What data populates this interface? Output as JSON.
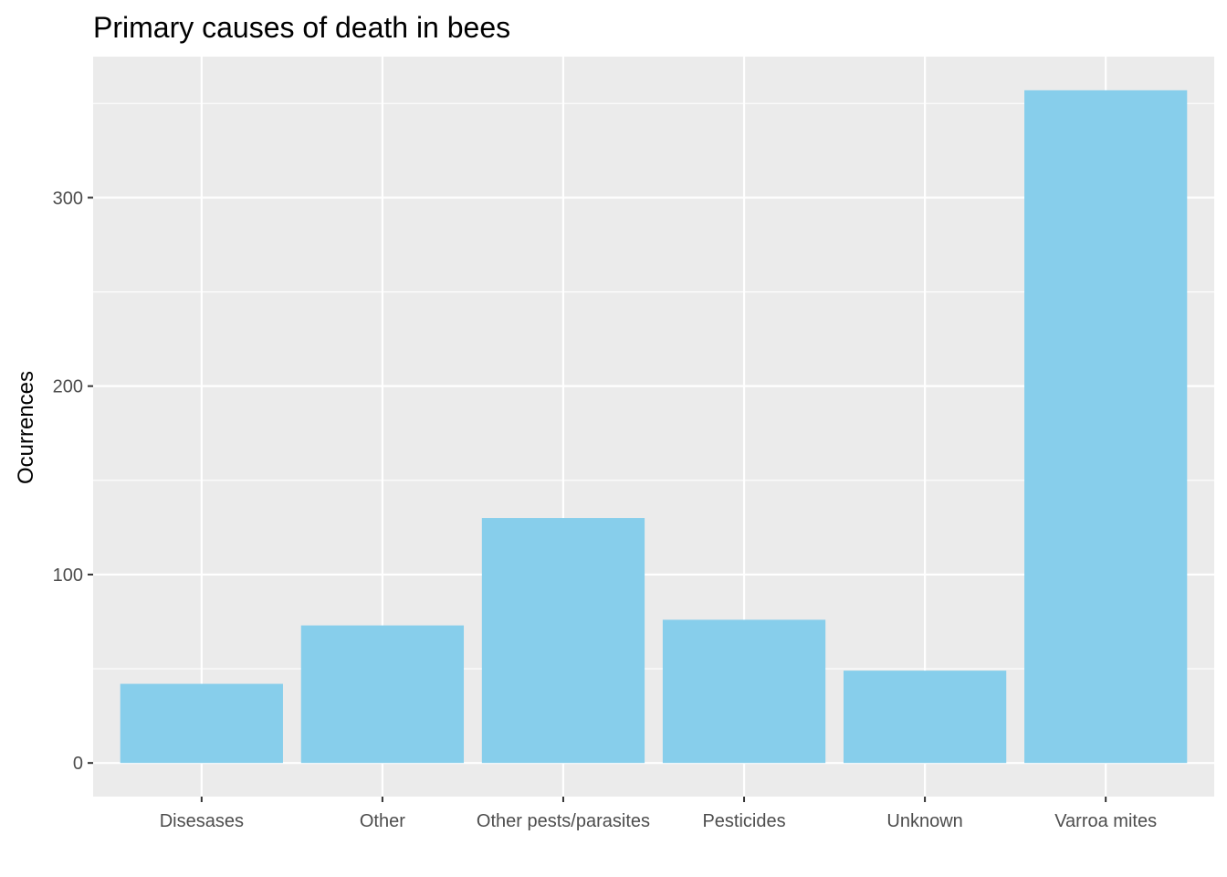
{
  "chart_data": {
    "type": "bar",
    "title": "Primary causes of death in bees",
    "xlabel": "",
    "ylabel": "Ocurrences",
    "categories": [
      "Disesases",
      "Other",
      "Other pests/parasites",
      "Pesticides",
      "Unknown",
      "Varroa mites"
    ],
    "values": [
      42,
      73,
      130,
      76,
      49,
      357
    ],
    "ylim": [
      -17.85,
      374.85
    ],
    "yticks": [
      0,
      100,
      200,
      300
    ],
    "grid": true,
    "legend": "none",
    "colors": {
      "bar": "#87CEEB",
      "panel": "#EBEBEB",
      "grid": "#FFFFFF",
      "tick": "#333333"
    }
  }
}
